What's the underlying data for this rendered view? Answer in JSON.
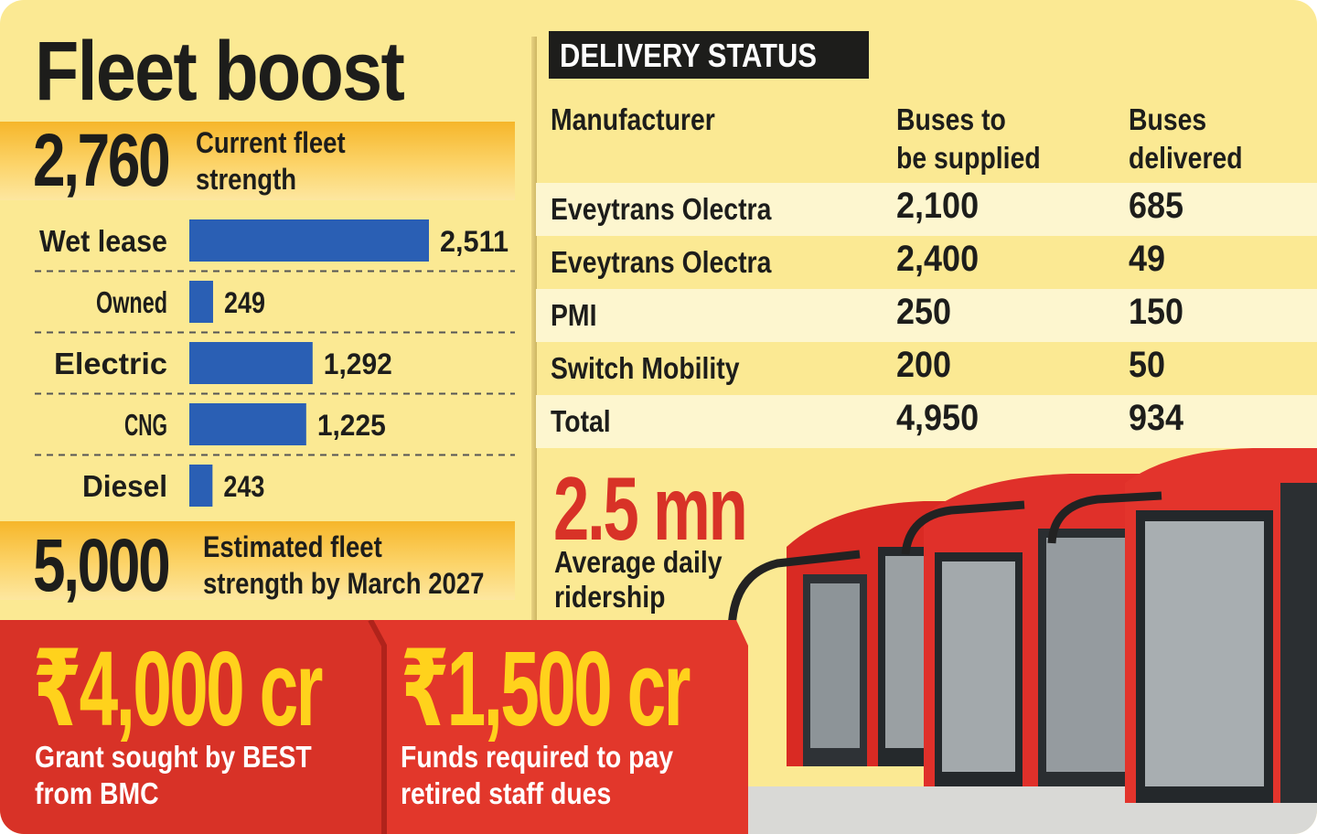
{
  "title": "Fleet boost",
  "current_fleet": {
    "value": "2,760",
    "label_line1": "Current fleet",
    "label_line2": "strength"
  },
  "chart_data": {
    "type": "bar",
    "orientation": "horizontal",
    "title": "",
    "categories": [
      "Wet lease",
      "Owned",
      "Electric",
      "CNG",
      "Diesel"
    ],
    "values": [
      2511,
      249,
      1292,
      1225,
      243
    ],
    "value_labels": [
      "2,511",
      "249",
      "1,292",
      "1,225",
      "243"
    ],
    "color": "#2a5fb4",
    "xlim": [
      0,
      2511
    ],
    "grid": false,
    "legend": "none"
  },
  "estimated_fleet": {
    "value": "5,000",
    "label_line1": "Estimated fleet",
    "label_line2": "strength by March 2027"
  },
  "delivery": {
    "header": "DELIVERY STATUS",
    "columns": {
      "manufacturer": "Manufacturer",
      "supplied_line1": "Buses to",
      "supplied_line2": "be supplied",
      "delivered_line1": "Buses",
      "delivered_line2": "delivered"
    },
    "rows": [
      {
        "manufacturer": "Eveytrans Olectra",
        "supplied": "2,100",
        "delivered": "685"
      },
      {
        "manufacturer": "Eveytrans Olectra",
        "supplied": "2,400",
        "delivered": "49"
      },
      {
        "manufacturer": "PMI",
        "supplied": "250",
        "delivered": "150"
      },
      {
        "manufacturer": "Switch Mobility",
        "supplied": "200",
        "delivered": "50"
      },
      {
        "manufacturer": "Total",
        "supplied": "4,950",
        "delivered": "934"
      }
    ]
  },
  "ridership": {
    "value": "2.5 mn",
    "label_line1": "Average daily",
    "label_line2": "ridership"
  },
  "grants": [
    {
      "value": "₹4,000 cr",
      "label_line1": "Grant sought by BEST",
      "label_line2": "from BMC"
    },
    {
      "value": "₹1,500 cr",
      "label_line1": "Funds required to pay",
      "label_line2": "retired staff dues"
    }
  ],
  "colors": {
    "background": "#fbe993",
    "bar": "#2a5fb4",
    "accent_red": "#d83227",
    "accent_yellow": "#ffd21c",
    "band_orange": "#f6b62a"
  }
}
